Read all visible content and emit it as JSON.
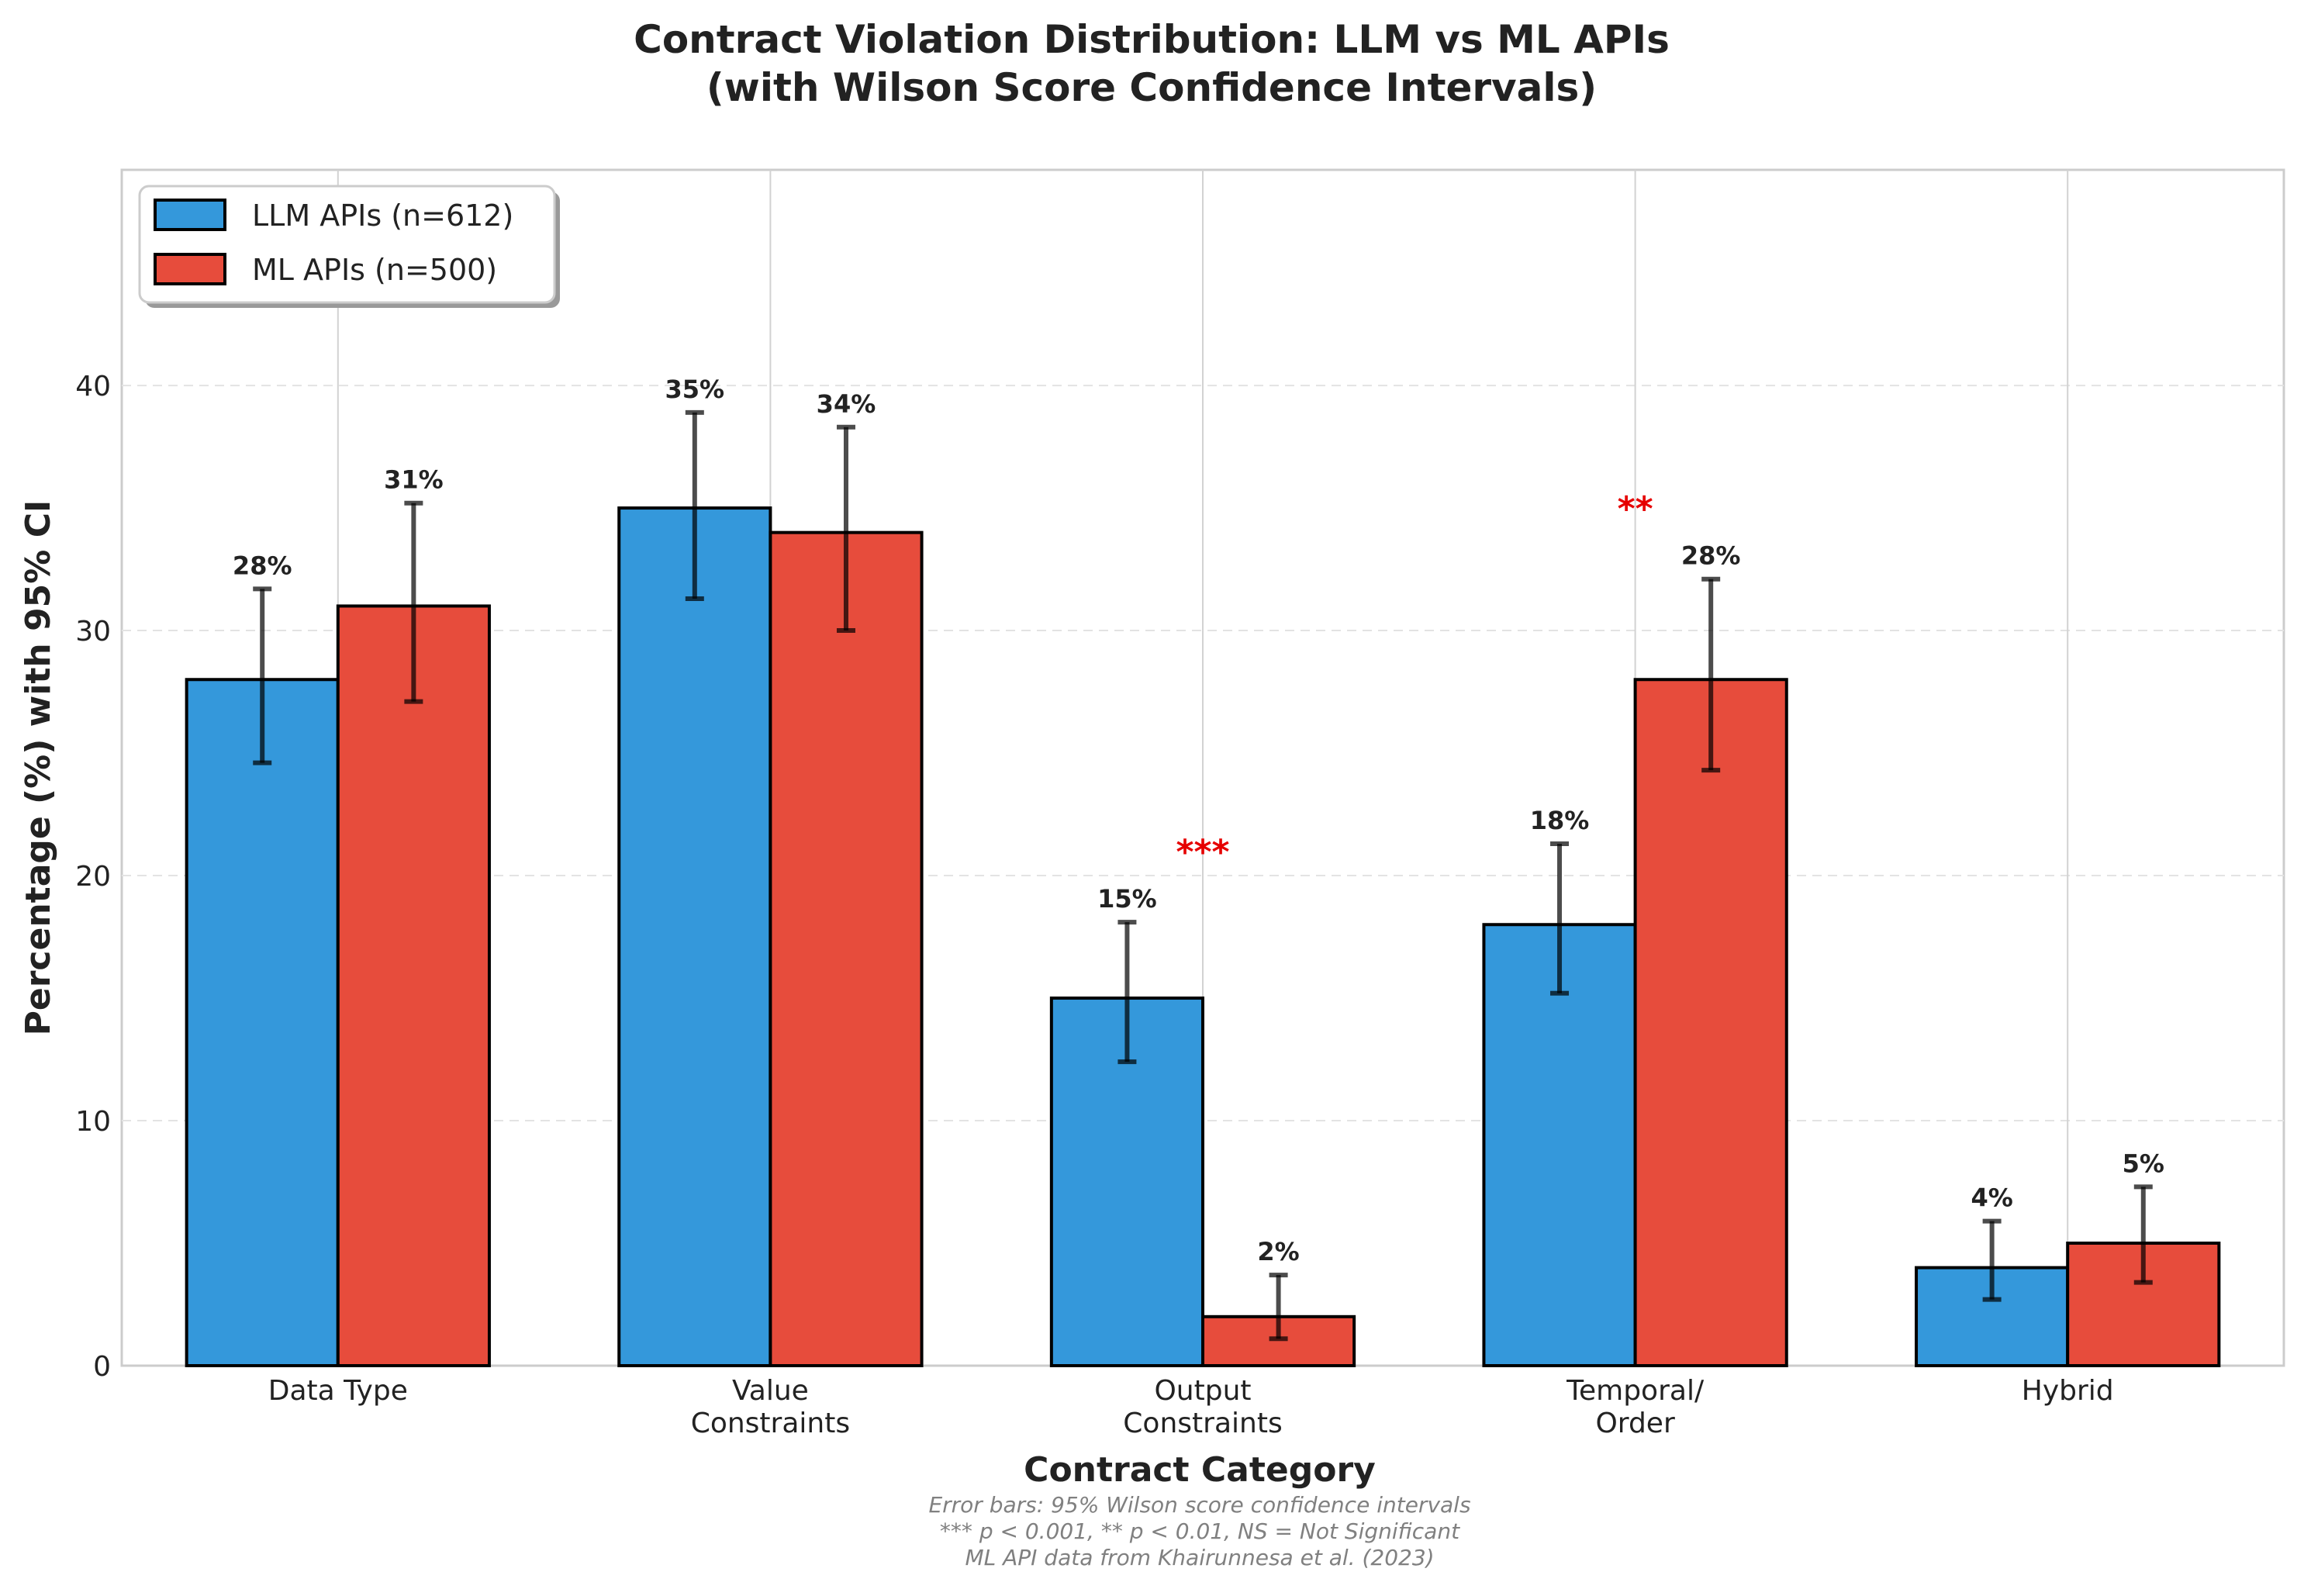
{
  "chart_data": {
    "type": "bar",
    "title": [
      "Contract Violation Distribution: LLM vs ML APIs",
      "(with Wilson Score Confidence Intervals)"
    ],
    "xlabel": "Contract Category",
    "ylabel": "Percentage (%) with 95% CI",
    "ylim": [
      0,
      48.8
    ],
    "yticks": [
      0,
      10,
      20,
      30,
      40
    ],
    "grid": "horizontal dashed y-grid, vertical grid lines at category centers",
    "legend_position": "top-left",
    "categories": [
      [
        "Data Type"
      ],
      [
        "Value",
        "Constraints"
      ],
      [
        "Output",
        "Constraints"
      ],
      [
        "Temporal/",
        "Order"
      ],
      [
        "Hybrid"
      ]
    ],
    "series": [
      {
        "name": "LLM APIs (n=612)",
        "color": "#3498db",
        "values": [
          28,
          35,
          15,
          18,
          4
        ],
        "labels": [
          "28%",
          "35%",
          "15%",
          "18%",
          "4%"
        ],
        "ci_low": [
          24.6,
          31.3,
          12.4,
          15.2,
          2.7
        ],
        "ci_high": [
          31.7,
          38.9,
          18.1,
          21.3,
          5.9
        ]
      },
      {
        "name": "ML APIs (n=500)",
        "color": "#e74c3c",
        "values": [
          31,
          34,
          2,
          28,
          5
        ],
        "labels": [
          "31%",
          "34%",
          "2%",
          "28%",
          "5%"
        ],
        "ci_low": [
          27.1,
          30.0,
          1.1,
          24.3,
          3.4
        ],
        "ci_high": [
          35.2,
          38.3,
          3.7,
          32.1,
          7.3
        ]
      }
    ],
    "significance": [
      {
        "category_index": 2,
        "text": "***",
        "y": 21
      },
      {
        "category_index": 3,
        "text": "**",
        "y": 35
      }
    ],
    "footnotes": [
      "Error bars: 95% Wilson score confidence intervals",
      "*** p < 0.001, ** p < 0.01, NS = Not Significant",
      "ML API data from Khairunnesa et al. (2023)"
    ]
  }
}
